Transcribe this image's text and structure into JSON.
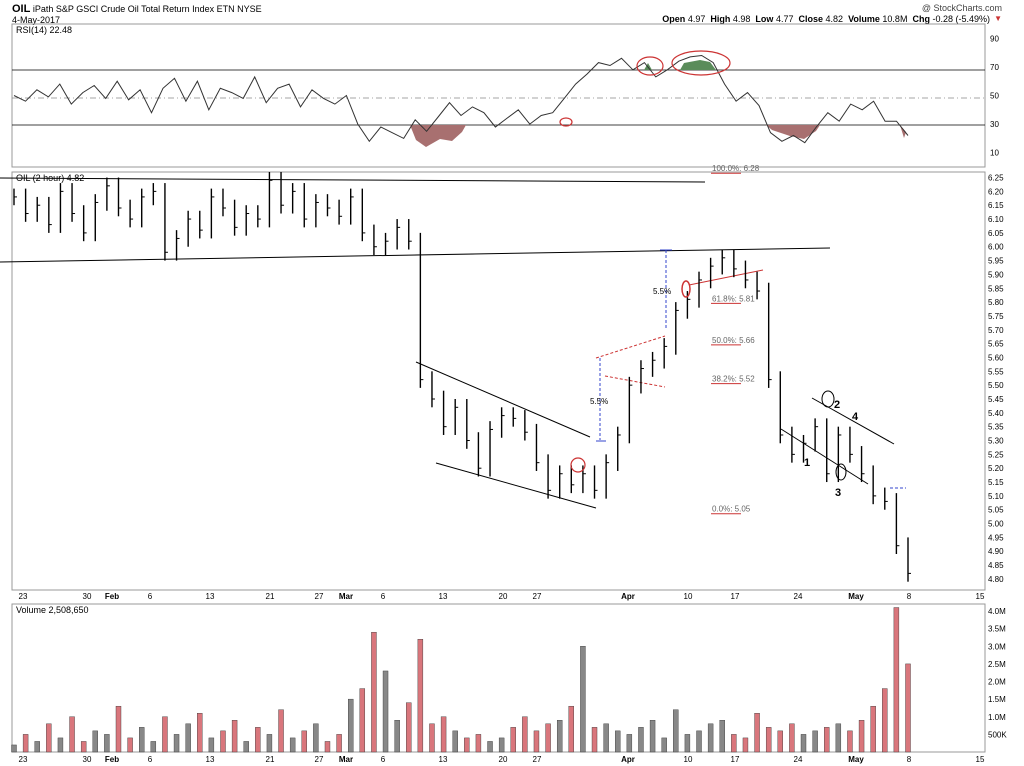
{
  "header": {
    "ticker": "OIL",
    "name": "iPath S&P GSCI Crude Oil Total Return Index ETN",
    "exchange": "NYSE",
    "date": "4-May-2017",
    "watermark": "@ StockCharts.com",
    "quote": {
      "open_label": "Open",
      "open": "4.97",
      "high_label": "High",
      "high": "4.98",
      "low_label": "Low",
      "low": "4.77",
      "close_label": "Close",
      "close": "4.82",
      "volume_label": "Volume",
      "volume": "10.8M",
      "chg_label": "Chg",
      "chg": "-0.28 (-5.49%)"
    }
  },
  "colors": {
    "up": "#000000",
    "down": "#cc3333",
    "rsi_fill_low": "#a87070",
    "rsi_fill_high": "#5a8c5a",
    "fib": "#cc3333",
    "marker": "#cc3333",
    "measure": "#3344cc"
  },
  "chart_data": [
    {
      "type": "line",
      "panel": "rsi",
      "title": "RSI(14) 22.48",
      "y_ticks": [
        10,
        30,
        50,
        70,
        90
      ],
      "ylim": [
        0,
        100
      ],
      "levels": [
        30,
        50,
        70
      ],
      "series": [
        {
          "name": "RSI(14)",
          "values": [
            50,
            46,
            54,
            49,
            58,
            44,
            52,
            57,
            48,
            60,
            47,
            54,
            38,
            55,
            62,
            46,
            60,
            40,
            55,
            52,
            48,
            63,
            45,
            55,
            58,
            42,
            54,
            48,
            44,
            50,
            30,
            18,
            28,
            24,
            20,
            33,
            25,
            35,
            45,
            36,
            42,
            38,
            28,
            34,
            40,
            30,
            36,
            38,
            48,
            58,
            65,
            73,
            71,
            76,
            68,
            73,
            63,
            68,
            74,
            77,
            78,
            73,
            58,
            46,
            52,
            43,
            24,
            18,
            22,
            17,
            28,
            38,
            32,
            44,
            40,
            46,
            32,
            32,
            22
          ]
        }
      ]
    },
    {
      "type": "bar",
      "panel": "price",
      "title": "OIL (2 hour) 4.82",
      "y_ticks": [
        "4.80",
        "4.85",
        "4.90",
        "4.95",
        "5.00",
        "5.05",
        "5.10",
        "5.15",
        "5.20",
        "5.25",
        "5.30",
        "5.35",
        "5.40",
        "5.45",
        "5.50",
        "5.55",
        "5.60",
        "5.65",
        "5.70",
        "5.75",
        "5.80",
        "5.85",
        "5.90",
        "5.95",
        "6.00",
        "6.05",
        "6.10",
        "6.15",
        "6.20",
        "6.25"
      ],
      "ylim": [
        4.76,
        6.27
      ],
      "x_ticks": [
        "23",
        "30",
        "Feb",
        "6",
        "13",
        "21",
        "27",
        "Mar",
        "6",
        "13",
        "20",
        "27",
        "Apr",
        "10",
        "17",
        "24",
        "May",
        "8",
        "15"
      ],
      "series": [
        {
          "name": "OIL",
          "values": [
            6.18,
            6.12,
            6.15,
            6.08,
            6.2,
            6.12,
            6.05,
            6.16,
            6.22,
            6.14,
            6.1,
            6.18,
            6.2,
            5.98,
            6.03,
            6.1,
            6.06,
            6.18,
            6.14,
            6.07,
            6.12,
            6.1,
            6.24,
            6.15,
            6.2,
            6.1,
            6.16,
            6.14,
            6.11,
            6.18,
            6.05,
            6.0,
            6.02,
            6.07,
            6.02,
            5.52,
            5.45,
            5.35,
            5.42,
            5.3,
            5.2,
            5.34,
            5.39,
            5.38,
            5.33,
            5.22,
            5.12,
            5.18,
            5.14,
            5.18,
            5.12,
            5.22,
            5.32,
            5.5,
            5.56,
            5.59,
            5.64,
            5.77,
            5.81,
            5.88,
            5.93,
            5.96,
            5.92,
            5.88,
            5.84,
            5.52,
            5.32,
            5.25,
            5.29,
            5.35,
            5.18,
            5.32,
            5.25,
            5.18,
            5.1,
            5.08,
            4.92,
            4.82
          ]
        }
      ],
      "fib_levels": [
        {
          "label": "100.0%: 6.28",
          "value": 6.28
        },
        {
          "label": "61.8%: 5.81",
          "value": 5.81
        },
        {
          "label": "50.0%: 5.66",
          "value": 5.66
        },
        {
          "label": "38.2%: 5.52",
          "value": 5.52
        },
        {
          "label": "0.0%: 5.05",
          "value": 5.05
        }
      ],
      "annotations": [
        "5.5%",
        "5.5%",
        "1",
        "2",
        "3",
        "4"
      ]
    },
    {
      "type": "bar",
      "panel": "volume",
      "title": "Volume 2,508,650",
      "y_ticks": [
        "500K",
        "1.0M",
        "1.5M",
        "2.0M",
        "2.5M",
        "3.0M",
        "3.5M",
        "4.0M"
      ],
      "ylim": [
        0,
        4.2
      ],
      "units": "M shares",
      "values": [
        0.2,
        0.5,
        0.3,
        0.8,
        0.4,
        1.0,
        0.3,
        0.6,
        0.5,
        1.3,
        0.4,
        0.7,
        0.3,
        1.0,
        0.5,
        0.8,
        1.1,
        0.4,
        0.6,
        0.9,
        0.3,
        0.7,
        0.5,
        1.2,
        0.4,
        0.6,
        0.8,
        0.3,
        0.5,
        1.5,
        1.8,
        3.4,
        2.3,
        0.9,
        1.4,
        3.2,
        0.8,
        1.0,
        0.6,
        0.4,
        0.5,
        0.3,
        0.4,
        0.7,
        1.0,
        0.6,
        0.8,
        0.9,
        1.3,
        3.0,
        0.7,
        0.8,
        0.6,
        0.5,
        0.7,
        0.9,
        0.4,
        1.2,
        0.5,
        0.6,
        0.8,
        0.9,
        0.5,
        0.4,
        1.1,
        0.7,
        0.6,
        0.8,
        0.5,
        0.6,
        0.7,
        0.8,
        0.6,
        0.9,
        1.3,
        1.8,
        4.1,
        2.5
      ]
    }
  ]
}
